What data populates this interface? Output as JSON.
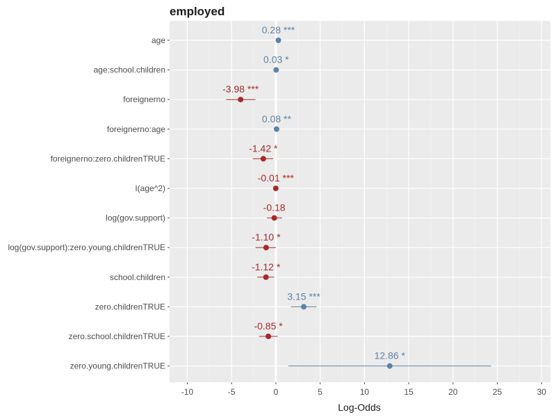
{
  "chart_data": {
    "type": "scatter",
    "title": "employed",
    "xlabel": "Log-Odds",
    "xlim": [
      -12,
      31
    ],
    "x_ticks": [
      -10,
      -5,
      0,
      5,
      10,
      15,
      20,
      25,
      30
    ],
    "x_tick_labels": [
      "-10",
      "-5",
      "0",
      "5",
      "10",
      "15",
      "20",
      "25",
      "30"
    ],
    "grid": true,
    "colors": {
      "positive": "#5e82a3",
      "negative": "#a52a2a",
      "panel": "#ebebeb",
      "zero_line": "#ffffff"
    },
    "categories": [
      "age",
      "age:school.children",
      "foreignerno",
      "foreignerno:age",
      "foreignerno:zero.childrenTRUE",
      "I(age^2)",
      "log(gov.support)",
      "log(gov.support):zero.young.childrenTRUE",
      "school.children",
      "zero.childrenTRUE",
      "zero.school.childrenTRUE",
      "zero.young.childrenTRUE"
    ],
    "estimates": [
      0.28,
      0.03,
      -3.98,
      0.08,
      -1.42,
      -0.01,
      -0.18,
      -1.1,
      -1.12,
      3.15,
      -0.85,
      12.86
    ],
    "ci_low": [
      0.2,
      0.0,
      -5.6,
      0.05,
      -2.6,
      -0.05,
      -1.0,
      -2.3,
      -2.1,
      1.7,
      -1.9,
      1.4
    ],
    "ci_high": [
      0.36,
      0.06,
      -2.3,
      0.11,
      -0.3,
      0.03,
      0.7,
      0.0,
      -0.2,
      4.6,
      0.2,
      24.3
    ],
    "value_labels": [
      "0.28 ***",
      "0.03 *",
      "-3.98 ***",
      "0.08 **",
      "-1.42 *",
      "-0.01 ***",
      "-0.18",
      "-1.10 *",
      "-1.12 *",
      "3.15 ***",
      "-0.85 *",
      "12.86 *"
    ]
  }
}
